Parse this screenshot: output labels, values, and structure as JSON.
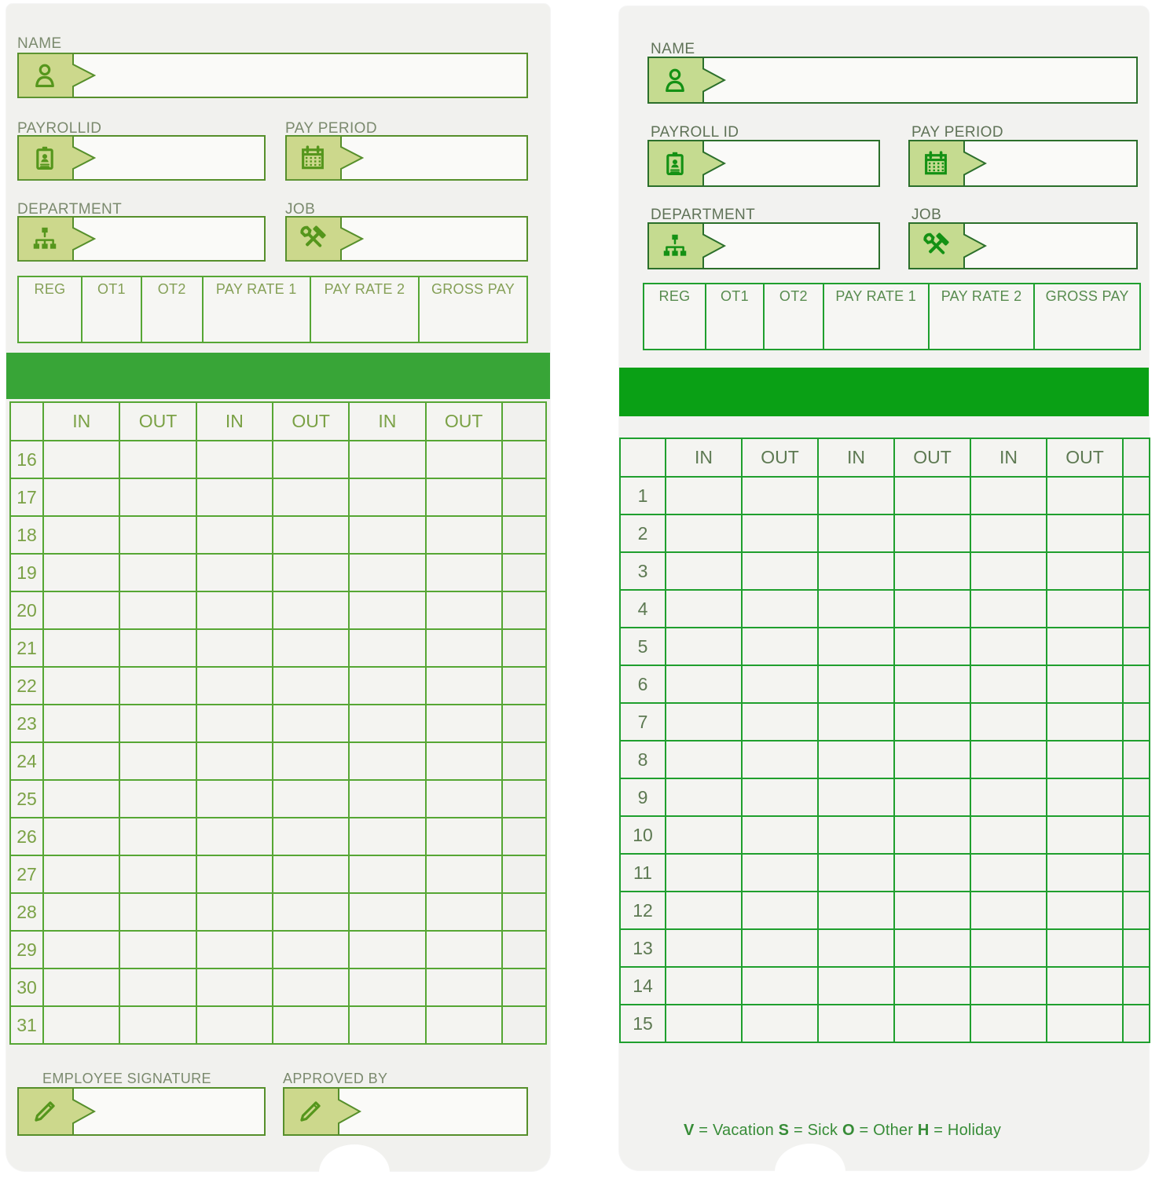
{
  "cards": [
    {
      "side_label": "monthly-side",
      "name_label": "NAME",
      "payroll_label": "PAYROLLID",
      "pay_period_label": "PAY PERIOD",
      "department_label": "DEPARTMENT",
      "job_label": "JOB",
      "summary_columns": [
        "REG",
        "OT1",
        "OT2",
        "PAY RATE 1",
        "PAY RATE 2",
        "GROSS PAY"
      ],
      "punch_columns": [
        "IN",
        "OUT",
        "IN",
        "OUT",
        "IN",
        "OUT"
      ],
      "days": [
        "16",
        "17",
        "18",
        "19",
        "20",
        "21",
        "22",
        "23",
        "24",
        "25",
        "26",
        "27",
        "28",
        "29",
        "30",
        "31"
      ],
      "signature_label": "EMPLOYEE SIGNATURE",
      "approved_label": "APPROVED BY"
    },
    {
      "side_label": "first-half-side",
      "name_label": "NAME",
      "payroll_label": "PAYROLL ID",
      "pay_period_label": "PAY PERIOD",
      "department_label": "DEPARTMENT",
      "job_label": "JOB",
      "summary_columns": [
        "REG",
        "OT1",
        "OT2",
        "PAY RATE 1",
        "PAY RATE 2",
        "GROSS PAY"
      ],
      "punch_columns": [
        "IN",
        "OUT",
        "IN",
        "OUT",
        "IN",
        "OUT"
      ],
      "days": [
        "1",
        "2",
        "3",
        "4",
        "5",
        "6",
        "7",
        "8",
        "9",
        "10",
        "11",
        "12",
        "13",
        "14",
        "15"
      ],
      "legend": [
        {
          "k": "V",
          "v": "Vacation"
        },
        {
          "k": "S",
          "v": "Sick"
        },
        {
          "k": "O",
          "v": "Other"
        },
        {
          "k": "H",
          "v": "Holiday"
        }
      ]
    }
  ],
  "colors": {
    "left_band_green": "#38a537",
    "right_band_green": "#0aa015",
    "left_accent_green": "#568f2b",
    "right_accent_green": "#2b6f2b",
    "tag_fill_green": "#ccd88c"
  }
}
